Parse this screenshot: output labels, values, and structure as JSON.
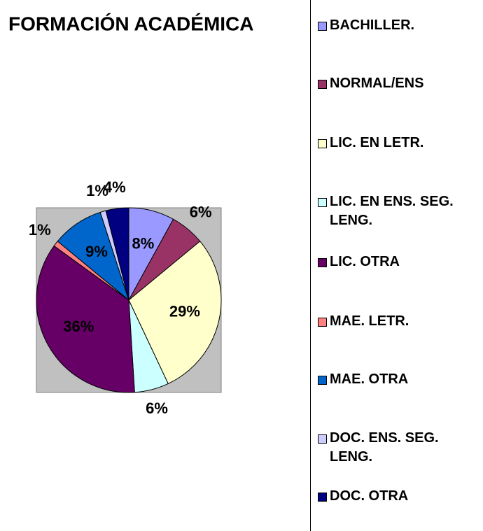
{
  "chart_data": {
    "type": "pie",
    "title": "FORMACIÓN ACADÉMICA",
    "categories": [
      "BACHILLER.",
      "NORMAL/ENS",
      "LIC. EN LETR.",
      "LIC. EN ENS. SEG. LENG.",
      "LIC. OTRA",
      "MAE. LETR.",
      "MAE. OTRA",
      "DOC. ENS. SEG. LENG.",
      "DOC. OTRA"
    ],
    "values": [
      8,
      6,
      29,
      6,
      36,
      1,
      9,
      1,
      4
    ],
    "value_labels": [
      "8%",
      "6%",
      "29%",
      "6%",
      "36%",
      "1%",
      "9%",
      "1%",
      "4%"
    ],
    "colors": [
      "#9999ff",
      "#993366",
      "#ffffcc",
      "#ccffff",
      "#660066",
      "#ff8080",
      "#0066cc",
      "#ccccff",
      "#000080"
    ],
    "legend": "right"
  }
}
